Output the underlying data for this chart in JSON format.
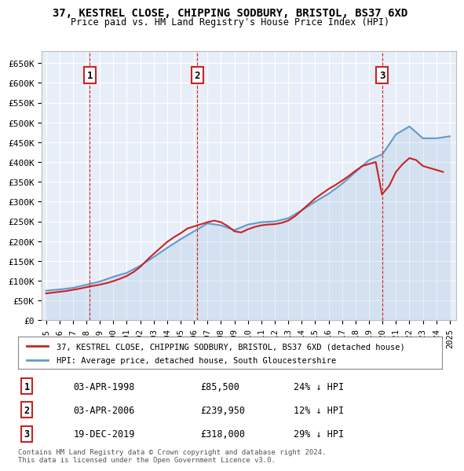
{
  "title": "37, KESTREL CLOSE, CHIPPING SODBURY, BRISTOL, BS37 6XD",
  "subtitle": "Price paid vs. HM Land Registry's House Price Index (HPI)",
  "hpi_label": "HPI: Average price, detached house, South Gloucestershire",
  "property_label": "37, KESTREL CLOSE, CHIPPING SODBURY, BRISTOL, BS37 6XD (detached house)",
  "ylabel_ticks": [
    "£0",
    "£50K",
    "£100K",
    "£150K",
    "£200K",
    "£250K",
    "£300K",
    "£350K",
    "£400K",
    "£450K",
    "£500K",
    "£550K",
    "£600K",
    "£650K"
  ],
  "ylim": [
    0,
    680000
  ],
  "xlim_start": 1995,
  "xlim_end": 2025.5,
  "background_color": "#e8eef8",
  "grid_color": "#ffffff",
  "hpi_color": "#6699cc",
  "property_color": "#cc2222",
  "dashed_line_color": "#cc2222",
  "sale_dates": [
    1998.25,
    2006.25,
    2019.96
  ],
  "sale_prices": [
    85500,
    239950,
    318000
  ],
  "sale_labels": [
    "1",
    "2",
    "3"
  ],
  "sale_info": [
    {
      "label": "1",
      "date": "03-APR-1998",
      "price": "£85,500",
      "hpi": "24% ↓ HPI"
    },
    {
      "label": "2",
      "date": "03-APR-2006",
      "price": "£239,950",
      "hpi": "12% ↓ HPI"
    },
    {
      "label": "3",
      "date": "19-DEC-2019",
      "price": "£318,000",
      "hpi": "29% ↓ HPI"
    }
  ],
  "footer": "Contains HM Land Registry data © Crown copyright and database right 2024.\nThis data is licensed under the Open Government Licence v3.0.",
  "hpi_x": [
    1995,
    1996,
    1997,
    1998,
    1999,
    2000,
    2001,
    2002,
    2003,
    2004,
    2005,
    2006,
    2007,
    2008,
    2009,
    2010,
    2011,
    2012,
    2013,
    2014,
    2015,
    2016,
    2017,
    2018,
    2019,
    2020,
    2021,
    2022,
    2023,
    2024,
    2025
  ],
  "hpi_y": [
    75000,
    78000,
    82000,
    90000,
    98000,
    110000,
    120000,
    138000,
    160000,
    183000,
    205000,
    225000,
    245000,
    240000,
    228000,
    242000,
    248000,
    250000,
    258000,
    278000,
    300000,
    320000,
    345000,
    375000,
    405000,
    420000,
    470000,
    490000,
    460000,
    460000,
    465000
  ],
  "property_x": [
    1995.0,
    1995.5,
    1996.0,
    1996.5,
    1997.0,
    1997.5,
    1998.25,
    1999.0,
    1999.5,
    2000.0,
    2000.5,
    2001.0,
    2001.5,
    2002.0,
    2002.5,
    2003.0,
    2003.5,
    2004.0,
    2004.5,
    2005.0,
    2005.5,
    2006.25,
    2007.0,
    2007.5,
    2008.0,
    2008.5,
    2009.0,
    2009.5,
    2010.0,
    2010.5,
    2011.0,
    2011.5,
    2012.0,
    2012.5,
    2013.0,
    2013.5,
    2014.0,
    2014.5,
    2015.0,
    2015.5,
    2016.0,
    2016.5,
    2017.0,
    2017.5,
    2018.0,
    2018.5,
    2019.0,
    2019.5,
    2019.96,
    2020.5,
    2021.0,
    2021.5,
    2022.0,
    2022.5,
    2023.0,
    2023.5,
    2024.0,
    2024.5
  ],
  "property_y": [
    68000,
    70000,
    72000,
    74000,
    77000,
    80000,
    85500,
    90000,
    94000,
    99000,
    105000,
    112000,
    122000,
    135000,
    152000,
    168000,
    183000,
    198000,
    210000,
    220000,
    232000,
    239950,
    248000,
    252000,
    248000,
    238000,
    225000,
    222000,
    230000,
    236000,
    240000,
    242000,
    243000,
    246000,
    252000,
    263000,
    278000,
    293000,
    308000,
    320000,
    332000,
    342000,
    353000,
    365000,
    378000,
    390000,
    395000,
    400000,
    318000,
    340000,
    375000,
    395000,
    410000,
    405000,
    390000,
    385000,
    380000,
    375000
  ]
}
